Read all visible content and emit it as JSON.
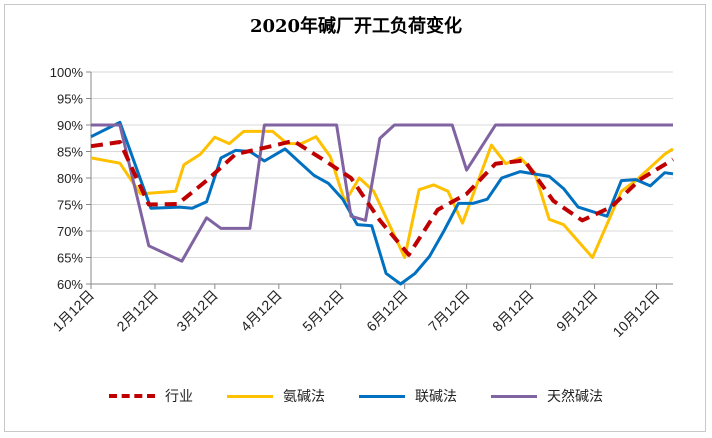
{
  "chart_data": {
    "type": "line",
    "title": "2020年碱厂开工负荷变化",
    "xlabel": "",
    "ylabel": "",
    "ylim": [
      0.6,
      1.0
    ],
    "yticks": [
      "60%",
      "65%",
      "70%",
      "75%",
      "80%",
      "85%",
      "90%",
      "95%",
      "100%"
    ],
    "xticks": [
      "1月12日",
      "2月12日",
      "3月12日",
      "4月12日",
      "5月12日",
      "6月12日",
      "7月12日",
      "8月12日",
      "9月12日",
      "10月12日"
    ],
    "x_start": "2020-01-12",
    "x_end": "2020-10-20",
    "grid": true,
    "legend_position": "bottom",
    "series": [
      {
        "name": "行业",
        "color": "#c00000",
        "style": "dashed",
        "points": [
          [
            "2020-01-12",
            0.86
          ],
          [
            "2020-01-26",
            0.868
          ],
          [
            "2020-02-09",
            0.75
          ],
          [
            "2020-02-23",
            0.751
          ],
          [
            "2020-03-08",
            0.795
          ],
          [
            "2020-03-22",
            0.845
          ],
          [
            "2020-04-05",
            0.857
          ],
          [
            "2020-04-19",
            0.87
          ],
          [
            "2020-05-03",
            0.836
          ],
          [
            "2020-05-17",
            0.8
          ],
          [
            "2020-05-31",
            0.72
          ],
          [
            "2020-06-14",
            0.655
          ],
          [
            "2020-06-28",
            0.74
          ],
          [
            "2020-07-12",
            0.77
          ],
          [
            "2020-07-26",
            0.827
          ],
          [
            "2020-08-09",
            0.833
          ],
          [
            "2020-08-23",
            0.757
          ],
          [
            "2020-09-06",
            0.72
          ],
          [
            "2020-09-20",
            0.745
          ],
          [
            "2020-10-04",
            0.797
          ],
          [
            "2020-10-20",
            0.835
          ]
        ]
      },
      {
        "name": "氨碱法",
        "color": "#ffc000",
        "style": "solid",
        "points": [
          [
            "2020-01-12",
            0.838
          ],
          [
            "2020-01-26",
            0.828
          ],
          [
            "2020-02-05",
            0.77
          ],
          [
            "2020-02-22",
            0.775
          ],
          [
            "2020-02-26",
            0.825
          ],
          [
            "2020-03-05",
            0.845
          ],
          [
            "2020-03-12",
            0.877
          ],
          [
            "2020-03-19",
            0.865
          ],
          [
            "2020-03-26",
            0.888
          ],
          [
            "2020-04-09",
            0.888
          ],
          [
            "2020-04-16",
            0.865
          ],
          [
            "2020-04-23",
            0.865
          ],
          [
            "2020-04-30",
            0.878
          ],
          [
            "2020-05-07",
            0.84
          ],
          [
            "2020-05-14",
            0.755
          ],
          [
            "2020-05-21",
            0.8
          ],
          [
            "2020-05-28",
            0.775
          ],
          [
            "2020-06-12",
            0.65
          ],
          [
            "2020-06-19",
            0.778
          ],
          [
            "2020-06-26",
            0.787
          ],
          [
            "2020-07-03",
            0.775
          ],
          [
            "2020-07-10",
            0.715
          ],
          [
            "2020-07-24",
            0.862
          ],
          [
            "2020-07-31",
            0.827
          ],
          [
            "2020-08-07",
            0.838
          ],
          [
            "2020-08-14",
            0.81
          ],
          [
            "2020-08-21",
            0.722
          ],
          [
            "2020-08-28",
            0.712
          ],
          [
            "2020-09-11",
            0.65
          ],
          [
            "2020-09-25",
            0.775
          ],
          [
            "2020-10-02",
            0.795
          ],
          [
            "2020-10-16",
            0.845
          ],
          [
            "2020-10-20",
            0.855
          ]
        ]
      },
      {
        "name": "联碱法",
        "color": "#0070c0",
        "style": "solid",
        "points": [
          [
            "2020-01-12",
            0.878
          ],
          [
            "2020-01-26",
            0.905
          ],
          [
            "2020-02-10",
            0.743
          ],
          [
            "2020-02-24",
            0.745
          ],
          [
            "2020-03-01",
            0.743
          ],
          [
            "2020-03-08",
            0.755
          ],
          [
            "2020-03-15",
            0.838
          ],
          [
            "2020-03-22",
            0.852
          ],
          [
            "2020-03-29",
            0.85
          ],
          [
            "2020-04-05",
            0.832
          ],
          [
            "2020-04-15",
            0.855
          ],
          [
            "2020-04-22",
            0.83
          ],
          [
            "2020-04-29",
            0.805
          ],
          [
            "2020-05-06",
            0.79
          ],
          [
            "2020-05-13",
            0.76
          ],
          [
            "2020-05-20",
            0.712
          ],
          [
            "2020-05-27",
            0.71
          ],
          [
            "2020-06-03",
            0.62
          ],
          [
            "2020-06-10",
            0.6
          ],
          [
            "2020-06-17",
            0.62
          ],
          [
            "2020-06-24",
            0.652
          ],
          [
            "2020-07-01",
            0.7
          ],
          [
            "2020-07-08",
            0.752
          ],
          [
            "2020-07-15",
            0.752
          ],
          [
            "2020-07-22",
            0.76
          ],
          [
            "2020-07-29",
            0.8
          ],
          [
            "2020-08-07",
            0.812
          ],
          [
            "2020-08-21",
            0.803
          ],
          [
            "2020-08-28",
            0.78
          ],
          [
            "2020-09-04",
            0.745
          ],
          [
            "2020-09-18",
            0.728
          ],
          [
            "2020-09-25",
            0.795
          ],
          [
            "2020-10-02",
            0.797
          ],
          [
            "2020-10-09",
            0.785
          ],
          [
            "2020-10-16",
            0.81
          ],
          [
            "2020-10-20",
            0.808
          ]
        ]
      },
      {
        "name": "天然碱法",
        "color": "#8064a2",
        "style": "solid",
        "points": [
          [
            "2020-01-12",
            0.9
          ],
          [
            "2020-01-26",
            0.9
          ],
          [
            "2020-02-09",
            0.672
          ],
          [
            "2020-02-25",
            0.643
          ],
          [
            "2020-03-08",
            0.725
          ],
          [
            "2020-03-15",
            0.705
          ],
          [
            "2020-03-29",
            0.705
          ],
          [
            "2020-04-05",
            0.9
          ],
          [
            "2020-05-10",
            0.9
          ],
          [
            "2020-05-17",
            0.728
          ],
          [
            "2020-05-24",
            0.72
          ],
          [
            "2020-05-31",
            0.875
          ],
          [
            "2020-06-07",
            0.9
          ],
          [
            "2020-07-05",
            0.9
          ],
          [
            "2020-07-12",
            0.815
          ],
          [
            "2020-07-26",
            0.9
          ],
          [
            "2020-10-20",
            0.9
          ]
        ]
      }
    ]
  }
}
